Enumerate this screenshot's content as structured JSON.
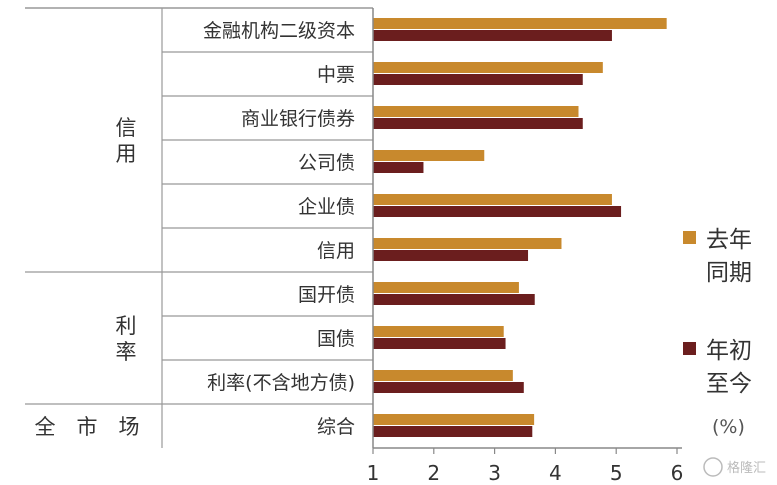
{
  "chart_data": {
    "type": "bar",
    "orientation": "horizontal",
    "categories": [
      "金融机构二级资本",
      "中票",
      "商业银行债券",
      "公司债",
      "企业债",
      "信用",
      "国开债",
      "国债",
      "利率(不含地方债)",
      "综合"
    ],
    "groups": [
      {
        "label": "信用",
        "categories": [
          "金融机构二级资本",
          "中票",
          "商业银行债券",
          "公司债",
          "企业债",
          "信用"
        ]
      },
      {
        "label": "利率",
        "categories": [
          "国开债",
          "国债",
          "利率(不含地方债)"
        ]
      },
      {
        "label": "全市场",
        "categories": [
          "综合"
        ]
      }
    ],
    "series": [
      {
        "name": "去年同期",
        "color": "#C8892D",
        "values": [
          5.83,
          4.78,
          4.38,
          2.83,
          4.93,
          4.1,
          3.4,
          3.15,
          3.3,
          3.65
        ]
      },
      {
        "name": "年初至今",
        "color": "#6B1E1E",
        "values": [
          4.93,
          4.45,
          4.45,
          1.83,
          5.08,
          3.55,
          3.66,
          3.18,
          3.48,
          3.62
        ]
      }
    ],
    "xlim": [
      1,
      6
    ],
    "xticks": [
      1,
      2,
      3,
      4,
      5,
      6
    ],
    "unit": "(%)",
    "legend": {
      "position": "right",
      "labels": [
        [
          "去年",
          "同期"
        ],
        [
          "年初",
          "至今"
        ]
      ]
    }
  },
  "watermark": "格隆汇"
}
